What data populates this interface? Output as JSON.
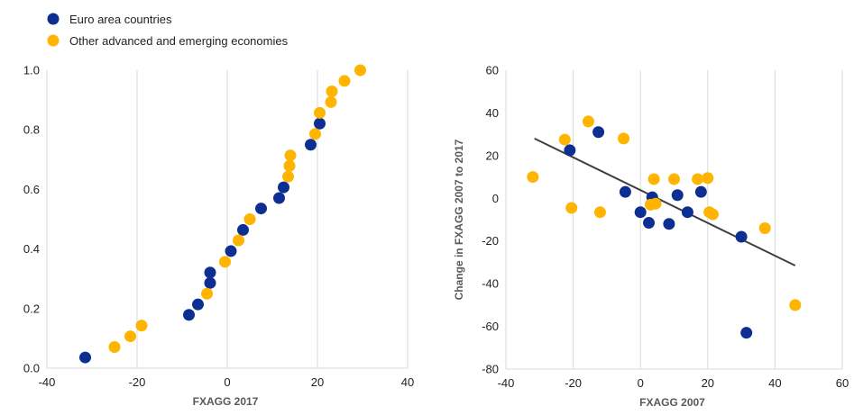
{
  "colors": {
    "euro": "#0d2f91",
    "other": "#ffb400",
    "grid": "#d9d9d9",
    "trend": "#3f3f3f"
  },
  "legend": {
    "items": [
      {
        "label": "Euro area countries",
        "color_key": "euro"
      },
      {
        "label": "Other advanced and emerging economies",
        "color_key": "other"
      }
    ]
  },
  "chart_data": [
    {
      "type": "scatter",
      "title": "",
      "xlabel": "FXAGG 2017",
      "ylabel": "",
      "xlim": [
        -40,
        40
      ],
      "ylim": [
        0.0,
        1.0
      ],
      "xticks": [
        -40,
        -20,
        0,
        20,
        40
      ],
      "yticks": [
        0.0,
        0.2,
        0.4,
        0.6,
        0.8,
        1.0
      ],
      "ytick_labels": [
        "0.0",
        "0.2",
        "0.4",
        "0.6",
        "0.8",
        "1.0"
      ],
      "grid": "vertical",
      "series": [
        {
          "name": "Euro area countries",
          "color_key": "euro",
          "points": [
            [
              -31.5,
              0.036
            ],
            [
              -8.5,
              0.179
            ],
            [
              -6.5,
              0.214
            ],
            [
              -3.8,
              0.286
            ],
            [
              -3.8,
              0.321
            ],
            [
              0.8,
              0.393
            ],
            [
              3.5,
              0.464
            ],
            [
              7.5,
              0.536
            ],
            [
              11.5,
              0.571
            ],
            [
              12.5,
              0.607
            ],
            [
              18.5,
              0.75
            ],
            [
              20.5,
              0.821
            ]
          ]
        },
        {
          "name": "Other advanced and emerging economies",
          "color_key": "other",
          "points": [
            [
              -25,
              0.071
            ],
            [
              -21.5,
              0.107
            ],
            [
              -19,
              0.143
            ],
            [
              -4.5,
              0.25
            ],
            [
              -0.5,
              0.357
            ],
            [
              2.5,
              0.429
            ],
            [
              5,
              0.5
            ],
            [
              13.5,
              0.643
            ],
            [
              13.8,
              0.679
            ],
            [
              14,
              0.714
            ],
            [
              19.5,
              0.786
            ],
            [
              20.5,
              0.857
            ],
            [
              23,
              0.893
            ],
            [
              23.2,
              0.929
            ],
            [
              26,
              0.964
            ],
            [
              29.5,
              1.0
            ]
          ]
        }
      ]
    },
    {
      "type": "scatter",
      "title": "",
      "xlabel": "FXAGG 2007",
      "ylabel": "Change in FXAGG 2007 to 2017",
      "xlim": [
        -40,
        60
      ],
      "ylim": [
        -80,
        60
      ],
      "xticks": [
        -40,
        -20,
        0,
        20,
        40,
        60
      ],
      "yticks": [
        -80,
        -60,
        -40,
        -20,
        0,
        20,
        40,
        60
      ],
      "grid": "vertical",
      "trendline": [
        [
          -31.5,
          28
        ],
        [
          46,
          -31.5
        ]
      ],
      "series": [
        {
          "name": "Euro area countries",
          "color_key": "euro",
          "points": [
            [
              -21,
              22.5
            ],
            [
              -12.5,
              31
            ],
            [
              -4.5,
              3
            ],
            [
              0,
              -6.5
            ],
            [
              2.5,
              -11.5
            ],
            [
              3.5,
              0.5
            ],
            [
              8.5,
              -12
            ],
            [
              11,
              1.5
            ],
            [
              14,
              -6.5
            ],
            [
              18,
              3
            ],
            [
              30,
              -18
            ],
            [
              31.5,
              -63
            ]
          ]
        },
        {
          "name": "Other advanced and emerging economies",
          "color_key": "other",
          "points": [
            [
              -32,
              10
            ],
            [
              -22.5,
              27.5
            ],
            [
              -20.5,
              -4.5
            ],
            [
              -15.5,
              36
            ],
            [
              -12,
              -6.5
            ],
            [
              -5,
              28
            ],
            [
              3,
              -3
            ],
            [
              4,
              9
            ],
            [
              4.5,
              -2.5
            ],
            [
              10,
              9
            ],
            [
              17,
              9
            ],
            [
              20,
              9.5
            ],
            [
              20.5,
              -6.5
            ],
            [
              21.5,
              -7.5
            ],
            [
              37,
              -14
            ],
            [
              46,
              -50
            ]
          ]
        }
      ]
    }
  ]
}
